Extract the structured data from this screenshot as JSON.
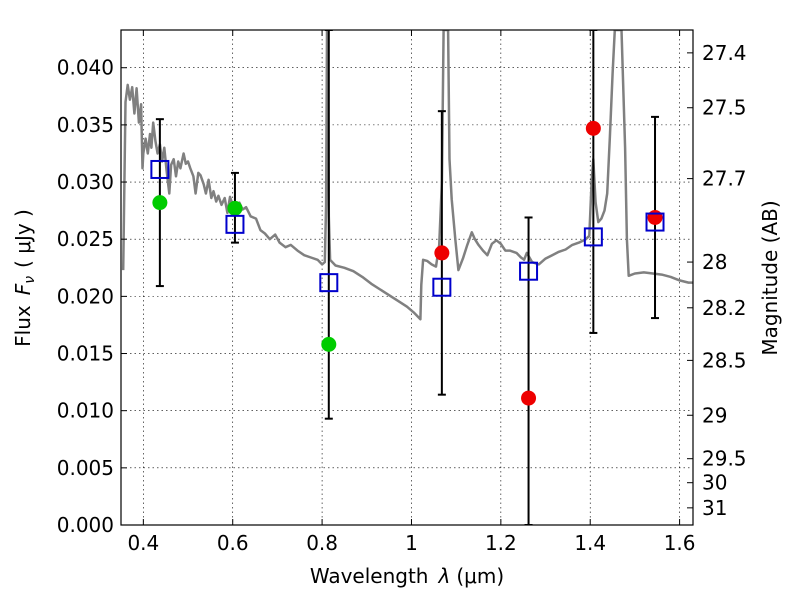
{
  "chart_data": {
    "type": "scatter",
    "title": "",
    "xlabel": "Wavelength λ (μm)",
    "ylabel": "Flux F_ν ( μJy )",
    "y2label": "Magnitude (AB)",
    "label_parts": {
      "x_text": "Wavelength",
      "x_sym": "λ",
      "x_unit": "(μm)",
      "y_text": "Flux",
      "y_sym": "F",
      "y_sub": "ν",
      "y_unit": "( μJy )"
    },
    "xlim": [
      0.35,
      1.63
    ],
    "ylim": [
      0.0,
      0.0433
    ],
    "grid": true,
    "x_ticks": [
      0.4,
      0.6,
      0.8,
      1.0,
      1.2,
      1.4,
      1.6
    ],
    "x_tick_labels": [
      "0.4",
      "0.6",
      "0.8",
      "1",
      "1.2",
      "1.4",
      "1.6"
    ],
    "y_ticks": [
      0.0,
      0.005,
      0.01,
      0.015,
      0.02,
      0.025,
      0.03,
      0.035,
      0.04
    ],
    "y_tick_labels": [
      "0.000",
      "0.005",
      "0.010",
      "0.015",
      "0.020",
      "0.025",
      "0.030",
      "0.035",
      "0.040"
    ],
    "y2_ticks": [
      {
        "label": "27.4",
        "flux": 0.0413
      },
      {
        "label": "27.5",
        "flux": 0.0365
      },
      {
        "label": "27.7",
        "flux": 0.0303
      },
      {
        "label": "28",
        "flux": 0.023
      },
      {
        "label": "28.2",
        "flux": 0.019
      },
      {
        "label": "28.5",
        "flux": 0.0144
      },
      {
        "label": "29",
        "flux": 0.0096
      },
      {
        "label": "29.5",
        "flux": 0.0058
      },
      {
        "label": "30",
        "flux": 0.0037
      },
      {
        "label": "31",
        "flux": 0.0015
      }
    ],
    "series": [
      {
        "type": "line",
        "color": "#808080",
        "points": [
          [
            0.355,
            0.0223
          ],
          [
            0.36,
            0.037
          ],
          [
            0.365,
            0.0385
          ],
          [
            0.37,
            0.0372
          ],
          [
            0.375,
            0.0383
          ],
          [
            0.38,
            0.036
          ],
          [
            0.385,
            0.0382
          ],
          [
            0.39,
            0.0352
          ],
          [
            0.395,
            0.0368
          ],
          [
            0.398,
            0.0312
          ],
          [
            0.4,
            0.0325
          ],
          [
            0.405,
            0.0338
          ],
          [
            0.41,
            0.0325
          ],
          [
            0.415,
            0.0342
          ],
          [
            0.418,
            0.033
          ],
          [
            0.422,
            0.0352
          ],
          [
            0.427,
            0.0336
          ],
          [
            0.432,
            0.0325
          ],
          [
            0.437,
            0.0333
          ],
          [
            0.442,
            0.0318
          ],
          [
            0.447,
            0.033
          ],
          [
            0.452,
            0.031
          ],
          [
            0.458,
            0.029
          ],
          [
            0.462,
            0.0315
          ],
          [
            0.468,
            0.032
          ],
          [
            0.473,
            0.0305
          ],
          [
            0.478,
            0.0318
          ],
          [
            0.483,
            0.0312
          ],
          [
            0.49,
            0.0325
          ],
          [
            0.495,
            0.0316
          ],
          [
            0.5,
            0.0318
          ],
          [
            0.505,
            0.0312
          ],
          [
            0.512,
            0.0305
          ],
          [
            0.517,
            0.029
          ],
          [
            0.523,
            0.0308
          ],
          [
            0.528,
            0.0306
          ],
          [
            0.535,
            0.0298
          ],
          [
            0.54,
            0.029
          ],
          [
            0.546,
            0.0302
          ],
          [
            0.552,
            0.0286
          ],
          [
            0.557,
            0.0292
          ],
          [
            0.563,
            0.0283
          ],
          [
            0.568,
            0.0288
          ],
          [
            0.575,
            0.028
          ],
          [
            0.582,
            0.0286
          ],
          [
            0.588,
            0.0273
          ],
          [
            0.594,
            0.0287
          ],
          [
            0.6,
            0.028
          ],
          [
            0.608,
            0.0272
          ],
          [
            0.615,
            0.0282
          ],
          [
            0.622,
            0.0276
          ],
          [
            0.63,
            0.0278
          ],
          [
            0.64,
            0.027
          ],
          [
            0.652,
            0.0268
          ],
          [
            0.662,
            0.0258
          ],
          [
            0.672,
            0.0255
          ],
          [
            0.683,
            0.025
          ],
          [
            0.695,
            0.0254
          ],
          [
            0.705,
            0.0247
          ],
          [
            0.718,
            0.0243
          ],
          [
            0.73,
            0.0245
          ],
          [
            0.745,
            0.024
          ],
          [
            0.76,
            0.0236
          ],
          [
            0.775,
            0.0234
          ],
          [
            0.79,
            0.0232
          ],
          [
            0.8,
            0.0228
          ],
          [
            0.806,
            0.023
          ],
          [
            0.809,
            0.028
          ],
          [
            0.811,
            0.0433
          ],
          [
            0.813,
            0.0433
          ],
          [
            0.815,
            0.027
          ],
          [
            0.818,
            0.0232
          ],
          [
            0.83,
            0.0227
          ],
          [
            0.85,
            0.0225
          ],
          [
            0.87,
            0.0222
          ],
          [
            0.89,
            0.0217
          ],
          [
            0.91,
            0.0211
          ],
          [
            0.93,
            0.0206
          ],
          [
            0.95,
            0.0201
          ],
          [
            0.97,
            0.0196
          ],
          [
            0.99,
            0.0191
          ],
          [
            1.005,
            0.0186
          ],
          [
            1.02,
            0.018
          ],
          [
            1.022,
            0.021
          ],
          [
            1.026,
            0.0232
          ],
          [
            1.035,
            0.0231
          ],
          [
            1.045,
            0.0228
          ],
          [
            1.055,
            0.0226
          ],
          [
            1.062,
            0.0245
          ],
          [
            1.068,
            0.03
          ],
          [
            1.072,
            0.0433
          ],
          [
            1.082,
            0.0433
          ],
          [
            1.085,
            0.032
          ],
          [
            1.09,
            0.0285
          ],
          [
            1.098,
            0.025
          ],
          [
            1.105,
            0.0223
          ],
          [
            1.115,
            0.0233
          ],
          [
            1.125,
            0.0245
          ],
          [
            1.135,
            0.0256
          ],
          [
            1.142,
            0.025
          ],
          [
            1.15,
            0.0245
          ],
          [
            1.16,
            0.024
          ],
          [
            1.17,
            0.0236
          ],
          [
            1.18,
            0.0246
          ],
          [
            1.19,
            0.0249
          ],
          [
            1.2,
            0.0246
          ],
          [
            1.21,
            0.024
          ],
          [
            1.22,
            0.024
          ],
          [
            1.235,
            0.0238
          ],
          [
            1.245,
            0.0234
          ],
          [
            1.252,
            0.0232
          ],
          [
            1.258,
            0.0238
          ],
          [
            1.27,
            0.023
          ],
          [
            1.285,
            0.0228
          ],
          [
            1.3,
            0.0233
          ],
          [
            1.315,
            0.0236
          ],
          [
            1.33,
            0.0239
          ],
          [
            1.345,
            0.0241
          ],
          [
            1.36,
            0.0245
          ],
          [
            1.375,
            0.0247
          ],
          [
            1.39,
            0.025
          ],
          [
            1.398,
            0.0253
          ],
          [
            1.403,
            0.03
          ],
          [
            1.407,
            0.032
          ],
          [
            1.412,
            0.0282
          ],
          [
            1.418,
            0.0265
          ],
          [
            1.425,
            0.0268
          ],
          [
            1.432,
            0.0275
          ],
          [
            1.438,
            0.029
          ],
          [
            1.444,
            0.034
          ],
          [
            1.45,
            0.0395
          ],
          [
            1.455,
            0.0433
          ],
          [
            1.47,
            0.0433
          ],
          [
            1.478,
            0.033
          ],
          [
            1.482,
            0.025
          ],
          [
            1.486,
            0.0218
          ],
          [
            1.5,
            0.022
          ],
          [
            1.52,
            0.0221
          ],
          [
            1.54,
            0.022
          ],
          [
            1.56,
            0.0219
          ],
          [
            1.58,
            0.0217
          ],
          [
            1.6,
            0.0214
          ],
          [
            1.62,
            0.0212
          ],
          [
            1.63,
            0.0212
          ]
        ]
      },
      {
        "type": "scatter",
        "marker": "open-square",
        "color": "#0000cc",
        "points": [
          [
            0.437,
            0.0311
          ],
          [
            0.605,
            0.0263
          ],
          [
            0.815,
            0.0212
          ],
          [
            1.068,
            0.0208
          ],
          [
            1.262,
            0.0222
          ],
          [
            1.407,
            0.0252
          ],
          [
            1.545,
            0.0265
          ]
        ]
      },
      {
        "type": "scatter",
        "marker": "filled-circle",
        "color": "#00cc00",
        "points": [
          [
            0.437,
            0.0282
          ],
          [
            0.605,
            0.0277
          ],
          [
            0.815,
            0.0158
          ]
        ]
      },
      {
        "type": "scatter",
        "marker": "filled-circle",
        "color": "#ee0000",
        "points": [
          [
            1.068,
            0.0238
          ],
          [
            1.262,
            0.0111
          ],
          [
            1.407,
            0.0347
          ],
          [
            1.545,
            0.0269
          ]
        ]
      },
      {
        "type": "errorbar",
        "color": "#000000",
        "bars": [
          {
            "x": 0.437,
            "low": 0.0209,
            "high": 0.0355
          },
          {
            "x": 0.605,
            "low": 0.0247,
            "high": 0.0308
          },
          {
            "x": 0.815,
            "low": 0.0093,
            "high": 0.0433
          },
          {
            "x": 1.068,
            "low": 0.0114,
            "high": 0.0362
          },
          {
            "x": 1.262,
            "low": 0.0,
            "high": 0.0269
          },
          {
            "x": 1.407,
            "low": 0.0168,
            "high": 0.0433
          },
          {
            "x": 1.545,
            "low": 0.0181,
            "high": 0.0357
          }
        ]
      }
    ]
  }
}
